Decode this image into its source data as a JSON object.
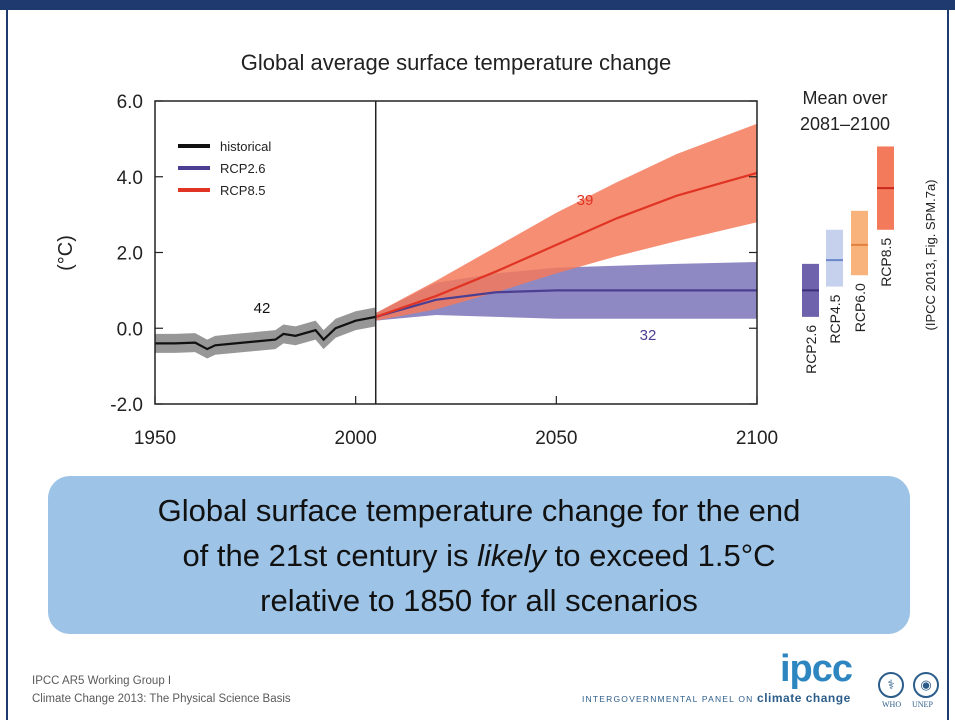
{
  "chart_data": {
    "type": "line",
    "title": "Global average surface temperature change",
    "ylabel": "(°C)",
    "xlabel": "",
    "xlim": [
      1950,
      2100
    ],
    "ylim": [
      -2.0,
      6.0
    ],
    "x_ticks": [
      "1950",
      "2000",
      "2050",
      "2100"
    ],
    "y_ticks": [
      "6.0",
      "4.0",
      "2.0",
      "0.0",
      "-2.0"
    ],
    "grid": false,
    "legend_position": "top-left",
    "divider_year": 2005,
    "series": [
      {
        "name": "historical",
        "color": "#111111",
        "band_color": "#8c8c8c",
        "model_count": "42",
        "x": [
          1950,
          1955,
          1960,
          1963,
          1965,
          1970,
          1975,
          1980,
          1982,
          1985,
          1990,
          1992,
          1995,
          2000,
          2005
        ],
        "y": [
          -0.4,
          -0.4,
          -0.38,
          -0.55,
          -0.45,
          -0.4,
          -0.35,
          -0.3,
          -0.15,
          -0.2,
          -0.05,
          -0.3,
          0.0,
          0.2,
          0.3
        ],
        "band_halfwidth": 0.25
      },
      {
        "name": "RCP2.6",
        "color": "#4b3f91",
        "band_color": "#7a73b8",
        "model_count": "32",
        "x": [
          2005,
          2020,
          2035,
          2050,
          2065,
          2080,
          2100
        ],
        "y": [
          0.3,
          0.75,
          0.95,
          1.0,
          1.0,
          1.0,
          1.0
        ],
        "band_low": [
          0.2,
          0.35,
          0.3,
          0.25,
          0.25,
          0.25,
          0.25
        ],
        "band_high": [
          0.4,
          1.2,
          1.45,
          1.6,
          1.65,
          1.7,
          1.75
        ]
      },
      {
        "name": "RCP8.5",
        "color": "#e03424",
        "band_color": "#f47a5c",
        "model_count": "39",
        "x": [
          2005,
          2020,
          2035,
          2050,
          2065,
          2080,
          2100
        ],
        "y": [
          0.3,
          0.85,
          1.5,
          2.2,
          2.9,
          3.5,
          4.1
        ],
        "band_low": [
          0.2,
          0.5,
          0.95,
          1.45,
          1.9,
          2.3,
          2.8
        ],
        "band_high": [
          0.4,
          1.25,
          2.15,
          3.05,
          3.85,
          4.6,
          5.4
        ]
      }
    ],
    "mean_panel": {
      "title_line1": "Mean over",
      "title_line2": "2081–2100",
      "bars": [
        {
          "name": "RCP2.6",
          "low": 0.3,
          "high": 1.7,
          "mean": 1.0,
          "color": "#6f62ad",
          "line_color": "#3b2f7a"
        },
        {
          "name": "RCP4.5",
          "low": 1.1,
          "high": 2.6,
          "mean": 1.8,
          "color": "#c6d1ee",
          "line_color": "#6b86c9"
        },
        {
          "name": "RCP6.0",
          "low": 1.4,
          "high": 3.1,
          "mean": 2.2,
          "color": "#f8b27c",
          "line_color": "#e2803d"
        },
        {
          "name": "RCP8.5",
          "low": 2.6,
          "high": 4.8,
          "mean": 3.7,
          "color": "#f37b5c",
          "line_color": "#c9251a"
        }
      ]
    },
    "source_note": "(IPCC 2013, Fig. SPM.7a)"
  },
  "callout": {
    "line1": "Global surface temperature change for the end",
    "line2_pre": "of the 21st century is ",
    "line2_emph": "likely",
    "line2_post": " to exceed 1.5°C",
    "line3": "relative to 1850 for all scenarios"
  },
  "footer": {
    "source_line1": "IPCC AR5 Working Group I",
    "source_line2": "Climate Change 2013:  The Physical Science Basis",
    "logo_text": "ipcc",
    "tagline_pre": "INTERGOVERNMENTAL PANEL ON ",
    "tagline_cc": "climate change",
    "org1_label": "WHO",
    "org2_label": "UNEP"
  }
}
